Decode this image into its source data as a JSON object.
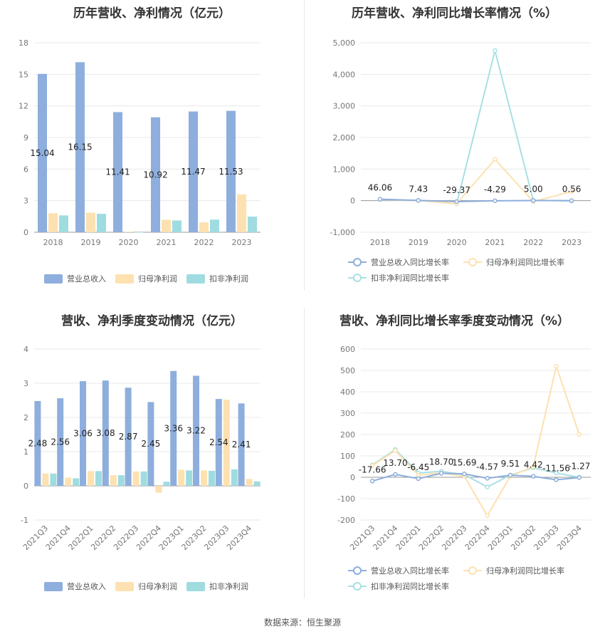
{
  "colors": {
    "revenue": "#8eaedd",
    "net_profit": "#fde1b0",
    "deducted_profit": "#9fdce0",
    "grid": "#e8e8e8",
    "axis_text": "#777777"
  },
  "footer": {
    "source": "数据来源：恒生聚源"
  },
  "chart_data": [
    {
      "type": "bar",
      "title": "历年营收、净利情况（亿元）",
      "categories": [
        "2018",
        "2019",
        "2020",
        "2021",
        "2022",
        "2023"
      ],
      "ylim": [
        0,
        18
      ],
      "yticks": [
        0,
        3,
        6,
        9,
        12,
        15,
        18
      ],
      "series": [
        {
          "name": "营业总收入",
          "values": [
            15.04,
            16.15,
            11.41,
            10.92,
            11.47,
            11.53
          ],
          "labels": [
            "15.04",
            "16.15",
            "11.41",
            "10.92",
            "11.47",
            "11.53"
          ]
        },
        {
          "name": "归母净利润",
          "values": [
            1.8,
            1.85,
            0.05,
            1.18,
            0.93,
            3.6
          ]
        },
        {
          "name": "扣非净利润",
          "values": [
            1.6,
            1.75,
            0.0,
            1.12,
            1.2,
            1.48
          ]
        }
      ],
      "legend": "bottom",
      "grid": true
    },
    {
      "type": "line",
      "title": "历年营收、净利同比增长率情况（%）",
      "categories": [
        "2018",
        "2019",
        "2020",
        "2021",
        "2022",
        "2023"
      ],
      "ylim": [
        -1000,
        5000
      ],
      "yticks": [
        -1000,
        0,
        1000,
        2000,
        3000,
        4000,
        5000
      ],
      "ytick_labels": [
        "-1,000",
        "0",
        "1,000",
        "2,000",
        "3,000",
        "4,000",
        "5,000"
      ],
      "series": [
        {
          "name": "营业总收入同比增长率",
          "values": [
            46.06,
            7.43,
            -29.37,
            -4.29,
            5.0,
            0.56
          ],
          "labels": [
            "46.06",
            "7.43",
            "-29.37",
            "-4.29",
            "5.00",
            "0.56"
          ]
        },
        {
          "name": "归母净利润同比增长率",
          "values": [
            40,
            5,
            -98,
            1310,
            -30,
            290
          ]
        },
        {
          "name": "扣非净利润同比增长率",
          "values": [
            30,
            8,
            -100,
            4750,
            10,
            -10
          ]
        }
      ],
      "legend": "bottom",
      "grid": true
    },
    {
      "type": "bar",
      "title": "营收、净利季度变动情况（亿元）",
      "categories": [
        "2021Q3",
        "2021Q4",
        "2022Q1",
        "2022Q2",
        "2022Q3",
        "2022Q4",
        "2023Q1",
        "2023Q2",
        "2023Q3",
        "2023Q4"
      ],
      "ylim": [
        -1,
        4
      ],
      "yticks": [
        -1,
        0,
        1,
        2,
        3,
        4
      ],
      "series": [
        {
          "name": "营业总收入",
          "values": [
            2.48,
            2.56,
            3.06,
            3.08,
            2.87,
            2.45,
            3.36,
            3.22,
            2.54,
            2.41
          ],
          "labels": [
            "2.48",
            "2.56",
            "3.06",
            "3.08",
            "2.87",
            "2.45",
            "3.36",
            "3.22",
            "2.54",
            "2.41"
          ]
        },
        {
          "name": "归母净利润",
          "values": [
            0.36,
            0.24,
            0.43,
            0.31,
            0.42,
            -0.2,
            0.47,
            0.45,
            2.52,
            0.2
          ]
        },
        {
          "name": "扣非净利润",
          "values": [
            0.36,
            0.22,
            0.43,
            0.31,
            0.42,
            0.12,
            0.45,
            0.44,
            0.48,
            0.13
          ]
        }
      ],
      "legend": "bottom",
      "grid": true
    },
    {
      "type": "line",
      "title": "营收、净利同比增长率季度变动情况（%）",
      "categories": [
        "2021Q3",
        "2021Q4",
        "2022Q1",
        "2022Q2",
        "2022Q3",
        "2022Q4",
        "2023Q1",
        "2023Q2",
        "2023Q3",
        "2023Q4"
      ],
      "ylim": [
        -200,
        600
      ],
      "yticks": [
        -200,
        -100,
        0,
        100,
        200,
        300,
        400,
        500,
        600
      ],
      "series": [
        {
          "name": "营业总收入同比增长率",
          "values": [
            -17.66,
            13.7,
            -6.45,
            18.7,
            15.69,
            -4.57,
            9.51,
            4.42,
            -11.56,
            -1.27
          ],
          "labels": [
            "-17.66",
            "13.70",
            "-6.45",
            "18.70",
            "15.69",
            "-4.57",
            "9.51",
            "4.42",
            "-11.56",
            "-1.27"
          ]
        },
        {
          "name": "归母净利润同比增长率",
          "values": [
            55,
            125,
            10,
            20,
            5,
            -180,
            5,
            50,
            520,
            200
          ]
        },
        {
          "name": "扣非净利润同比增长率",
          "values": [
            58,
            130,
            20,
            28,
            12,
            -45,
            10,
            45,
            20,
            0
          ]
        }
      ],
      "legend": "bottom",
      "grid": true
    }
  ]
}
